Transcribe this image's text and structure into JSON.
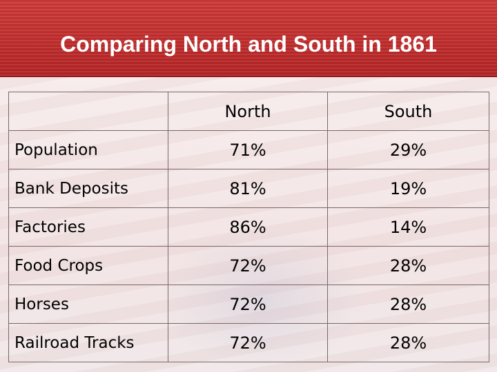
{
  "title": "Comparing North and South in 1861",
  "table": {
    "headers": [
      "",
      "North",
      "South"
    ],
    "rows": [
      {
        "label": "Population",
        "north": "71%",
        "south": "29%"
      },
      {
        "label": "Bank Deposits",
        "north": "81%",
        "south": "19%"
      },
      {
        "label": "Factories",
        "north": "86%",
        "south": "14%"
      },
      {
        "label": "Food Crops",
        "north": "72%",
        "south": "28%"
      },
      {
        "label": "Horses",
        "north": "72%",
        "south": "28%"
      },
      {
        "label": "Railroad Tracks",
        "north": "72%",
        "south": "28%"
      }
    ]
  },
  "colors": {
    "header_red": "#c12d2d",
    "background_tint": "#f3e5e5",
    "grid": "#7a6666"
  }
}
